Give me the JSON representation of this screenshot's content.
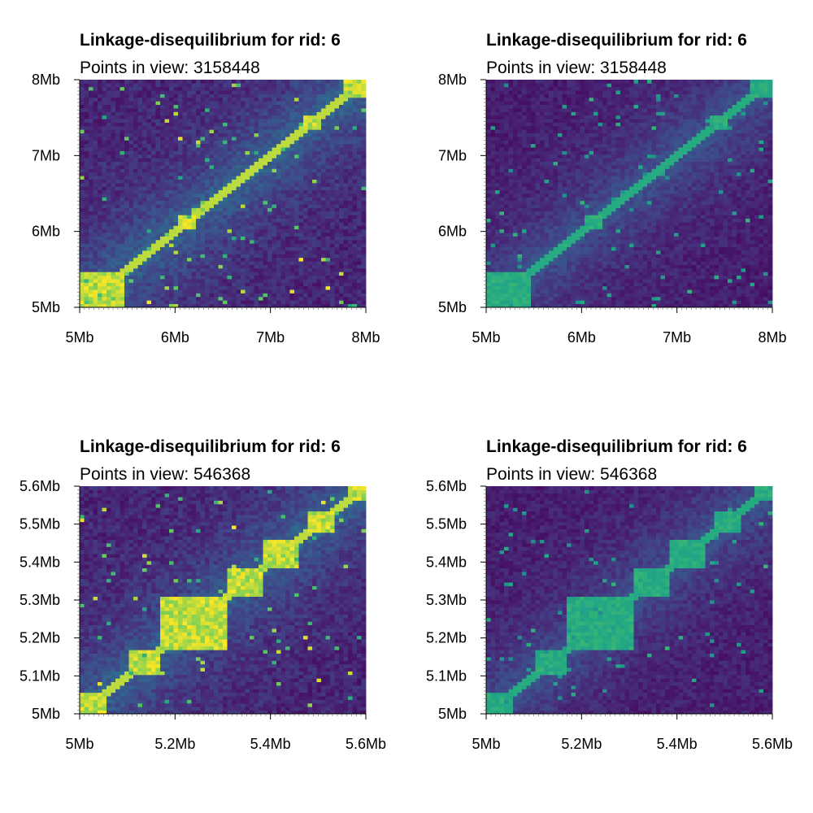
{
  "chart_data": [
    {
      "type": "heatmap",
      "title": "Linkage-disequilibrium for rid: 6",
      "subtitle": "Points in view: 3158448",
      "colormap": "viridis",
      "value_scale_max": 1.0,
      "xlim": [
        5.0,
        8.0
      ],
      "ylim": [
        5.0,
        8.0
      ],
      "x_ticks": [
        {
          "value": 5.0,
          "label": "5Mb"
        },
        {
          "value": 6.0,
          "label": "6Mb"
        },
        {
          "value": 7.0,
          "label": "7Mb"
        },
        {
          "value": 8.0,
          "label": "8Mb"
        }
      ],
      "y_ticks": [
        {
          "value": 5.0,
          "label": "5Mb"
        },
        {
          "value": 6.0,
          "label": "6Mb"
        },
        {
          "value": 7.0,
          "label": "7Mb"
        },
        {
          "value": 8.0,
          "label": "8Mb"
        }
      ],
      "ld_blocks_mb": [
        [
          5.0,
          5.45
        ],
        [
          6.05,
          6.2
        ],
        [
          7.35,
          7.55
        ],
        [
          7.75,
          8.0
        ]
      ]
    },
    {
      "type": "heatmap",
      "title": "Linkage-disequilibrium for rid: 6",
      "subtitle": "Points in view: 3158448",
      "colormap": "viridis",
      "value_scale_max": 0.8,
      "xlim": [
        5.0,
        8.0
      ],
      "ylim": [
        5.0,
        8.0
      ],
      "x_ticks": [
        {
          "value": 5.0,
          "label": "5Mb"
        },
        {
          "value": 6.0,
          "label": "6Mb"
        },
        {
          "value": 7.0,
          "label": "7Mb"
        },
        {
          "value": 8.0,
          "label": "8Mb"
        }
      ],
      "y_ticks": [
        {
          "value": 5.0,
          "label": "5Mb"
        },
        {
          "value": 6.0,
          "label": "6Mb"
        },
        {
          "value": 7.0,
          "label": "7Mb"
        },
        {
          "value": 8.0,
          "label": "8Mb"
        }
      ],
      "ld_blocks_mb": [
        [
          5.0,
          5.45
        ],
        [
          6.05,
          6.2
        ],
        [
          7.35,
          7.55
        ],
        [
          7.75,
          8.0
        ]
      ]
    },
    {
      "type": "heatmap",
      "title": "Linkage-disequilibrium for rid: 6",
      "subtitle": "Points in view: 546368",
      "colormap": "viridis",
      "value_scale_max": 1.0,
      "xlim": [
        5.0,
        5.6
      ],
      "ylim": [
        5.0,
        5.6
      ],
      "x_ticks": [
        {
          "value": 5.0,
          "label": "5Mb"
        },
        {
          "value": 5.2,
          "label": "5.2Mb"
        },
        {
          "value": 5.4,
          "label": "5.4Mb"
        },
        {
          "value": 5.6,
          "label": "5.6Mb"
        }
      ],
      "y_ticks": [
        {
          "value": 5.0,
          "label": "5Mb"
        },
        {
          "value": 5.1,
          "label": "5.1Mb"
        },
        {
          "value": 5.2,
          "label": "5.2Mb"
        },
        {
          "value": 5.3,
          "label": "5.3Mb"
        },
        {
          "value": 5.4,
          "label": "5.4Mb"
        },
        {
          "value": 5.5,
          "label": "5.5Mb"
        },
        {
          "value": 5.6,
          "label": "5.6Mb"
        }
      ],
      "ld_blocks_mb": [
        [
          5.0,
          5.06
        ],
        [
          5.1,
          5.17
        ],
        [
          5.17,
          5.31
        ],
        [
          5.31,
          5.38
        ],
        [
          5.38,
          5.46
        ],
        [
          5.48,
          5.53
        ],
        [
          5.56,
          5.6
        ]
      ]
    },
    {
      "type": "heatmap",
      "title": "Linkage-disequilibrium for rid: 6",
      "subtitle": "Points in view: 546368",
      "colormap": "viridis",
      "value_scale_max": 0.8,
      "xlim": [
        5.0,
        5.6
      ],
      "ylim": [
        5.0,
        5.6
      ],
      "x_ticks": [
        {
          "value": 5.0,
          "label": "5Mb"
        },
        {
          "value": 5.2,
          "label": "5.2Mb"
        },
        {
          "value": 5.4,
          "label": "5.4Mb"
        },
        {
          "value": 5.6,
          "label": "5.6Mb"
        }
      ],
      "y_ticks": [
        {
          "value": 5.0,
          "label": "5Mb"
        },
        {
          "value": 5.1,
          "label": "5.1Mb"
        },
        {
          "value": 5.2,
          "label": "5.2Mb"
        },
        {
          "value": 5.3,
          "label": "5.3Mb"
        },
        {
          "value": 5.4,
          "label": "5.4Mb"
        },
        {
          "value": 5.5,
          "label": "5.5Mb"
        },
        {
          "value": 5.6,
          "label": "5.6Mb"
        }
      ],
      "ld_blocks_mb": [
        [
          5.0,
          5.06
        ],
        [
          5.1,
          5.17
        ],
        [
          5.17,
          5.31
        ],
        [
          5.31,
          5.38
        ],
        [
          5.38,
          5.46
        ],
        [
          5.48,
          5.53
        ],
        [
          5.56,
          5.6
        ]
      ]
    }
  ]
}
